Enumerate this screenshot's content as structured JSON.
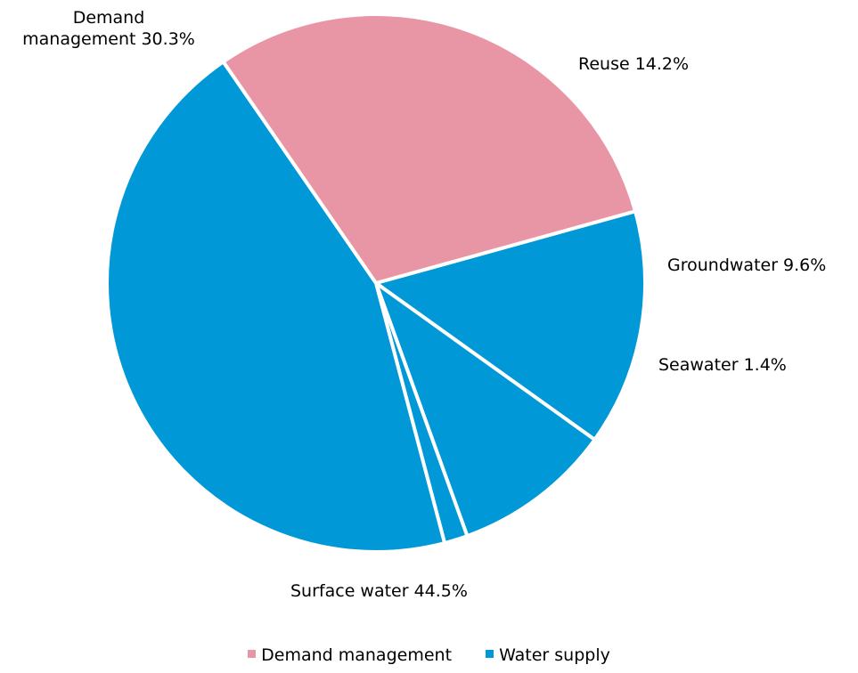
{
  "chart_data": {
    "type": "pie",
    "slices": [
      {
        "label": "Reuse 14.2%",
        "value": 14.2,
        "group": "Water supply"
      },
      {
        "label": "Groundwater 9.6%",
        "value": 9.6,
        "group": "Water supply"
      },
      {
        "label": "Seawater 1.4%",
        "value": 1.4,
        "group": "Water supply"
      },
      {
        "label": "Surface water 44.5%",
        "value": 44.5,
        "group": "Water supply"
      },
      {
        "label": "Demand management 30.3%",
        "value": 30.3,
        "group": "Demand management"
      }
    ],
    "label_lines": {
      "demand_line1": "Demand",
      "demand_line2": "management 30.3%"
    },
    "legend": {
      "placement": "bottom",
      "items": [
        {
          "label": "Demand management",
          "color": "#e896a5"
        },
        {
          "label": "Water supply",
          "color": "#0098d6"
        }
      ]
    },
    "colors": {
      "Demand management": "#e896a5",
      "Water supply": "#0098d6",
      "separator": "#ffffff"
    }
  }
}
